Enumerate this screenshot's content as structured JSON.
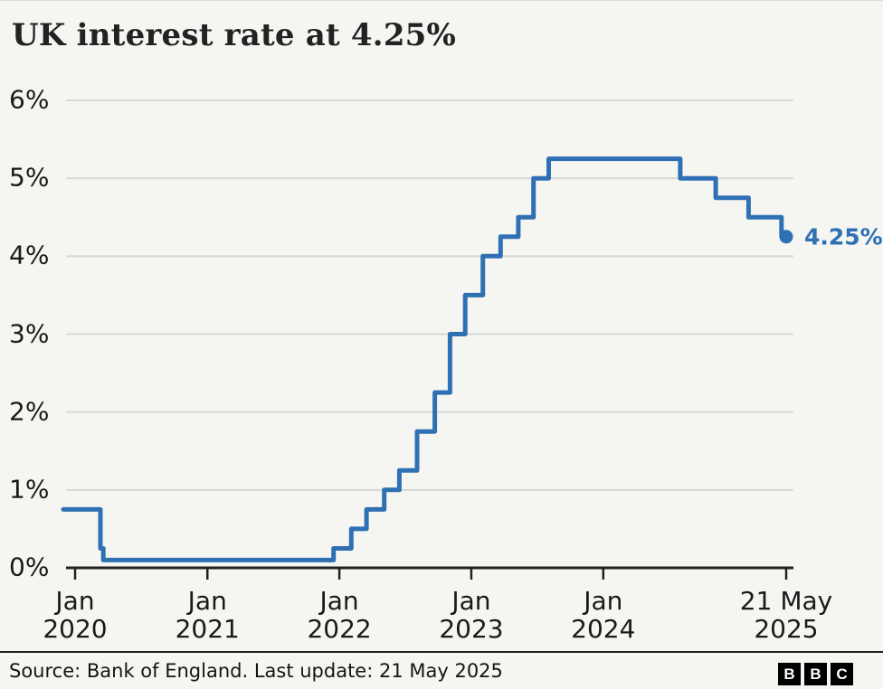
{
  "chart_data": {
    "type": "line",
    "step": true,
    "title": "UK interest rate at 4.25%",
    "xlabel": "",
    "ylabel": "",
    "ylim": [
      0,
      6
    ],
    "grid": true,
    "line_color": "#2f70b4",
    "background_color": "#f5f5f2",
    "x_domain": [
      "2020-01-01",
      "2025-05-21"
    ],
    "series": [
      {
        "name": "UK interest rate",
        "points": [
          {
            "date": "2020-01-01",
            "rate": 0.75
          },
          {
            "date": "2020-03-11",
            "rate": 0.25
          },
          {
            "date": "2020-03-19",
            "rate": 0.1
          },
          {
            "date": "2021-12-16",
            "rate": 0.25
          },
          {
            "date": "2022-02-03",
            "rate": 0.5
          },
          {
            "date": "2022-03-17",
            "rate": 0.75
          },
          {
            "date": "2022-05-05",
            "rate": 1.0
          },
          {
            "date": "2022-06-16",
            "rate": 1.25
          },
          {
            "date": "2022-08-04",
            "rate": 1.75
          },
          {
            "date": "2022-09-22",
            "rate": 2.25
          },
          {
            "date": "2022-11-03",
            "rate": 3.0
          },
          {
            "date": "2022-12-15",
            "rate": 3.5
          },
          {
            "date": "2023-02-02",
            "rate": 4.0
          },
          {
            "date": "2023-03-23",
            "rate": 4.25
          },
          {
            "date": "2023-05-11",
            "rate": 4.5
          },
          {
            "date": "2023-06-22",
            "rate": 5.0
          },
          {
            "date": "2023-08-03",
            "rate": 5.25
          },
          {
            "date": "2024-08-01",
            "rate": 5.0
          },
          {
            "date": "2024-11-07",
            "rate": 4.75
          },
          {
            "date": "2025-02-06",
            "rate": 4.5
          },
          {
            "date": "2025-05-08",
            "rate": 4.25
          },
          {
            "date": "2025-05-21",
            "rate": 4.25
          }
        ]
      }
    ],
    "end_point_label": "4.25%",
    "y_ticks": [
      {
        "value": 6,
        "label": "6%"
      },
      {
        "value": 5,
        "label": "5%"
      },
      {
        "value": 4,
        "label": "4%"
      },
      {
        "value": 3,
        "label": "3%"
      },
      {
        "value": 2,
        "label": "2%"
      },
      {
        "value": 1,
        "label": "1%"
      },
      {
        "value": 0,
        "label": "0%"
      }
    ],
    "x_ticks": [
      {
        "date": "2020-01-01",
        "line1": "Jan",
        "line2": "2020"
      },
      {
        "date": "2021-01-01",
        "line1": "Jan",
        "line2": "2021"
      },
      {
        "date": "2022-01-01",
        "line1": "Jan",
        "line2": "2022"
      },
      {
        "date": "2023-01-01",
        "line1": "Jan",
        "line2": "2023"
      },
      {
        "date": "2024-01-01",
        "line1": "Jan",
        "line2": "2024"
      },
      {
        "date": "2025-05-21",
        "line1": "21 May",
        "line2": "2025"
      }
    ]
  },
  "footer": {
    "source": "Source: Bank of England. Last update: 21 May 2025",
    "logo_letters": [
      "B",
      "B",
      "C"
    ]
  }
}
